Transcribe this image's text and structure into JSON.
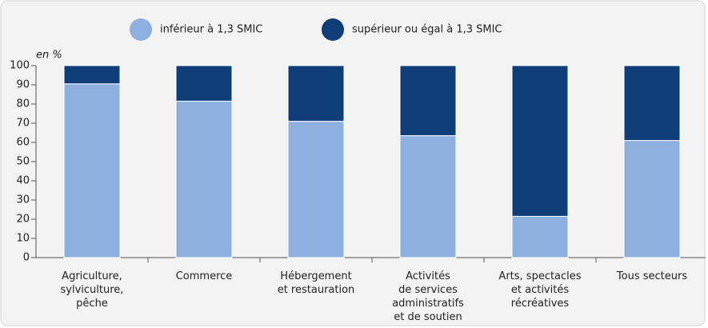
{
  "chart_data": {
    "type": "stacked_bar",
    "y_unit_label": "en %",
    "categories": [
      "Agriculture,\nsylviculture,\npêche",
      "Commerce",
      "Hébergement\net restauration",
      "Activités\nde services\nadministratifs\net de soutien",
      "Arts, spectacles\net activités\nrécréatives",
      "Tous secteurs"
    ],
    "series": [
      {
        "name": "inférieur à 1,3 SMIC",
        "color": "#8eb0e0",
        "values": [
          90.5,
          81.5,
          71,
          63.5,
          21.5,
          61
        ]
      },
      {
        "name": "supérieur ou égal à 1,3 SMIC",
        "color": "#0e3d78",
        "values": [
          9.5,
          18.5,
          29,
          36.5,
          78.5,
          39
        ]
      }
    ],
    "ylim": [
      0,
      100
    ],
    "yticks": [
      0,
      10,
      20,
      30,
      40,
      50,
      60,
      70,
      80,
      90,
      100
    ],
    "grid": false,
    "legend": "top"
  }
}
